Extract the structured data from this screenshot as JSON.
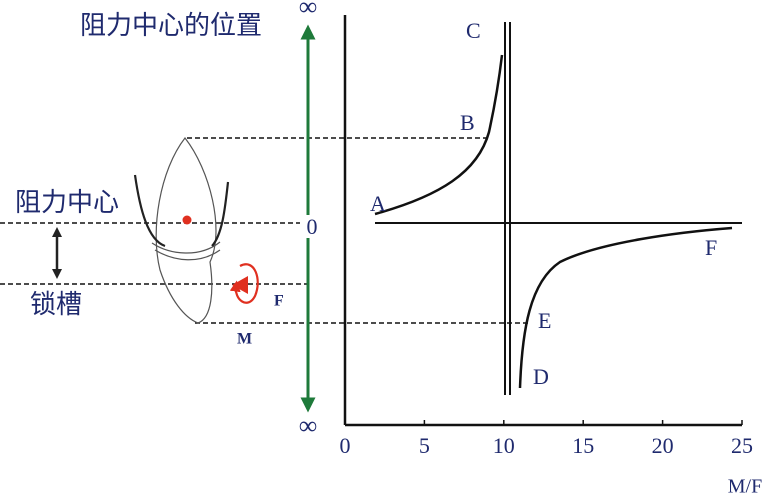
{
  "title": "阻力中心的位置",
  "left_labels": {
    "center": "阻力中心",
    "slot": "锁槽",
    "force": "F",
    "moment": "M"
  },
  "vertical_scale": {
    "top": "∞",
    "zero": "0",
    "bottom": "∞"
  },
  "curve_points": [
    "A",
    "B",
    "C",
    "D",
    "E",
    "F"
  ],
  "axis": {
    "label": "M/F",
    "xlim": [
      0,
      25
    ],
    "xticks": [
      0,
      5,
      10,
      15,
      20,
      25
    ]
  }
}
